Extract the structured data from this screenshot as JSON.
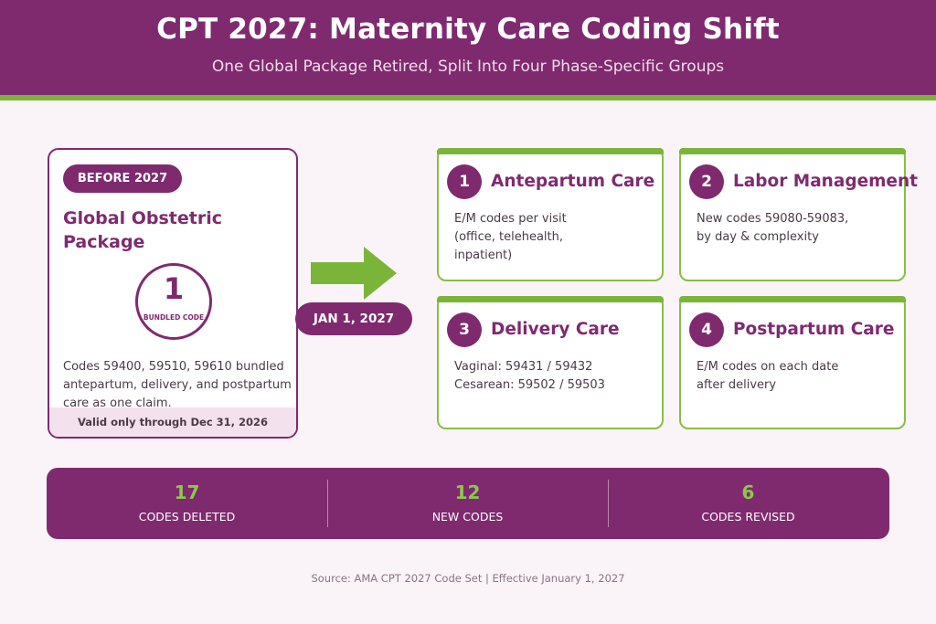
{
  "header": {
    "title": "CPT 2027: Maternity Care Coding Shift",
    "subtitle": "One Global Package Retired, Split Into Four Phase-Specific Groups"
  },
  "before": {
    "badge": "BEFORE 2027",
    "title": "Global Obstetric Package",
    "bundle_count": "1",
    "bundle_label": "BUNDLED CODE",
    "description": "Codes 59400, 59510, 59610 bundled antepartum, delivery, and postpartum care as one claim.",
    "footer": "Valid only through Dec 31, 2026"
  },
  "transition": {
    "date": "JAN 1, 2027"
  },
  "phases": [
    {
      "number": "1",
      "title": "Antepartum Care",
      "line1": "E/M codes per visit",
      "line2": "(office, telehealth,",
      "line3": "inpatient)"
    },
    {
      "number": "2",
      "title": "Labor Management",
      "line1": "New codes 59080-59083,",
      "line2": "by day & complexity",
      "line3": ""
    },
    {
      "number": "3",
      "title": "Delivery Care",
      "line1": "Vaginal: 59431 / 59432",
      "line2": "Cesarean: 59502 / 59503",
      "line3": ""
    },
    {
      "number": "4",
      "title": "Postpartum Care",
      "line1": "E/M codes on each date",
      "line2": "after delivery",
      "line3": ""
    }
  ],
  "stats": [
    {
      "value": "17",
      "label": "CODES DELETED"
    },
    {
      "value": "12",
      "label": "NEW CODES"
    },
    {
      "value": "6",
      "label": "CODES REVISED"
    }
  ],
  "source": "Source: AMA CPT 2027 Code Set  |  Effective January 1, 2027",
  "colors": {
    "primary": "#7f2a6f",
    "accent": "#7ab53a",
    "background": "#faf4f8"
  }
}
